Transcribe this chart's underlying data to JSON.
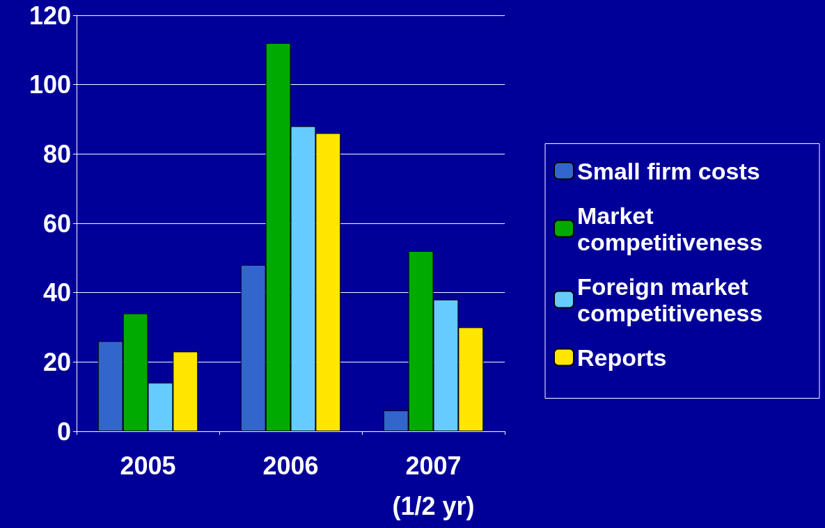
{
  "chart_data": {
    "type": "bar",
    "categories": [
      "2005",
      "2006",
      "2007\n(1/2 yr)"
    ],
    "series": [
      {
        "name": "Small firm costs",
        "color": "#3366cc",
        "values": [
          26,
          48,
          6
        ]
      },
      {
        "name": "Market competitiveness",
        "color": "#00aa00",
        "values": [
          34,
          112,
          52
        ]
      },
      {
        "name": "Foreign market competitiveness",
        "color": "#66ccff",
        "values": [
          14,
          88,
          38
        ]
      },
      {
        "name": "Reports",
        "color": "#ffe600",
        "values": [
          23,
          86,
          30
        ]
      }
    ],
    "ylim": [
      0,
      120
    ],
    "yticks": [
      0,
      20,
      40,
      60,
      80,
      100,
      120
    ],
    "grid": "y",
    "legend": "right"
  }
}
